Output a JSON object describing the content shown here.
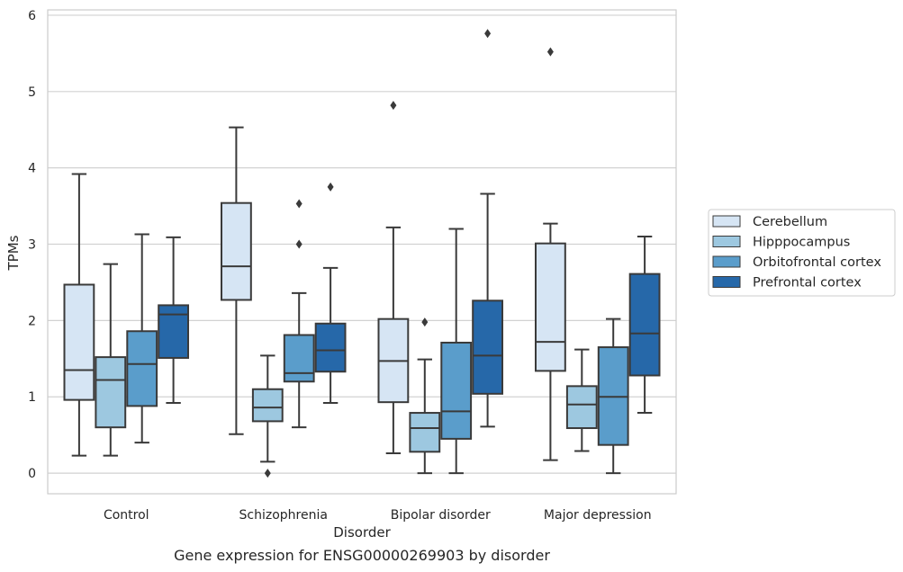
{
  "chart_data": {
    "type": "box",
    "caption": "Gene expression for ENSG00000269903 by disorder",
    "xlabel": "Disorder",
    "ylabel": "TPMs",
    "ylim": [
      -0.27,
      6.07
    ],
    "yticks": [
      0,
      1,
      2,
      3,
      4,
      5,
      6
    ],
    "grid": true,
    "legend_position": "right",
    "categories": [
      "Control",
      "Schizophrenia",
      "Bipolar disorder",
      "Major depression"
    ],
    "series": [
      {
        "name": "Cerebellum",
        "color": "#d6e5f4",
        "boxes": [
          {
            "min": 0.23,
            "q1": 0.96,
            "median": 1.35,
            "q3": 2.47,
            "max": 3.92,
            "outliers": []
          },
          {
            "min": 0.51,
            "q1": 2.27,
            "median": 2.71,
            "q3": 3.54,
            "max": 4.53,
            "outliers": []
          },
          {
            "min": 0.26,
            "q1": 0.93,
            "median": 1.47,
            "q3": 2.02,
            "max": 3.22,
            "outliers": [
              4.82
            ]
          },
          {
            "min": 0.17,
            "q1": 1.34,
            "median": 1.72,
            "q3": 3.01,
            "max": 3.27,
            "outliers": [
              5.52
            ]
          }
        ]
      },
      {
        "name": "Hipppocampus",
        "color": "#9dc8e0",
        "boxes": [
          {
            "min": 0.23,
            "q1": 0.6,
            "median": 1.22,
            "q3": 1.52,
            "max": 2.74,
            "outliers": []
          },
          {
            "min": 0.15,
            "q1": 0.68,
            "median": 0.86,
            "q3": 1.1,
            "max": 1.54,
            "outliers": [
              0.0
            ]
          },
          {
            "min": 0.0,
            "q1": 0.28,
            "median": 0.59,
            "q3": 0.79,
            "max": 1.49,
            "outliers": [
              1.98
            ]
          },
          {
            "min": 0.29,
            "q1": 0.59,
            "median": 0.9,
            "q3": 1.14,
            "max": 1.62,
            "outliers": []
          }
        ]
      },
      {
        "name": "Orbitofrontal cortex",
        "color": "#5a9dcb",
        "boxes": [
          {
            "min": 0.4,
            "q1": 0.88,
            "median": 1.43,
            "q3": 1.86,
            "max": 3.13,
            "outliers": []
          },
          {
            "min": 0.6,
            "q1": 1.2,
            "median": 1.31,
            "q3": 1.81,
            "max": 2.36,
            "outliers": [
              3.0,
              3.53
            ]
          },
          {
            "min": 0.0,
            "q1": 0.45,
            "median": 0.81,
            "q3": 1.71,
            "max": 3.2,
            "outliers": []
          },
          {
            "min": 0.0,
            "q1": 0.37,
            "median": 1.0,
            "q3": 1.65,
            "max": 2.02,
            "outliers": []
          }
        ]
      },
      {
        "name": "Prefrontal cortex",
        "color": "#2668a9",
        "boxes": [
          {
            "min": 0.92,
            "q1": 1.51,
            "median": 2.08,
            "q3": 2.2,
            "max": 3.09,
            "outliers": []
          },
          {
            "min": 0.92,
            "q1": 1.33,
            "median": 1.61,
            "q3": 1.96,
            "max": 2.69,
            "outliers": [
              3.75
            ]
          },
          {
            "min": 0.61,
            "q1": 1.04,
            "median": 1.54,
            "q3": 2.26,
            "max": 3.66,
            "outliers": [
              5.76
            ]
          },
          {
            "min": 0.79,
            "q1": 1.28,
            "median": 1.83,
            "q3": 2.61,
            "max": 3.1,
            "outliers": []
          }
        ]
      }
    ]
  },
  "colors": {
    "grid": "#d2d2d2",
    "frame": "#cccccc",
    "box_edge": "#3a3a3a"
  }
}
